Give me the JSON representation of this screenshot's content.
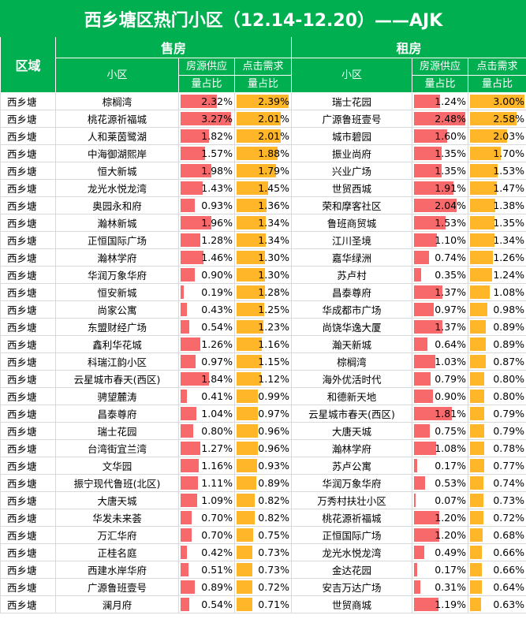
{
  "title": "西乡塘区热门小区（12.14-12.20）——AJK",
  "headers": {
    "area": "区域",
    "sale": "售房",
    "rent": "租房",
    "community": "小区",
    "supply_l1": "房源供应",
    "supply_l2": "量占比",
    "demand_l1": "点击需求",
    "demand_l2": "量占比"
  },
  "colors": {
    "header_bg": "#00b050",
    "supply_bar": "#f8696b",
    "demand_bar": "#ffb628"
  },
  "rows": [
    {
      "area": "西乡塘",
      "sale": {
        "name": "棕榈湾",
        "supply": "2.32%",
        "demand": "2.39%"
      },
      "rent": {
        "name": "瑞士花园",
        "supply": "1.24%",
        "demand": "3.00%"
      }
    },
    {
      "area": "西乡塘",
      "sale": {
        "name": "桃花源祈福城",
        "supply": "3.27%",
        "demand": "2.01%"
      },
      "rent": {
        "name": "广源鲁班壹号",
        "supply": "2.48%",
        "demand": "2.58%"
      }
    },
    {
      "area": "西乡塘",
      "sale": {
        "name": "人和莱茵鹭湖",
        "supply": "1.82%",
        "demand": "2.01%"
      },
      "rent": {
        "name": "城市碧园",
        "supply": "1.60%",
        "demand": "2.03%"
      }
    },
    {
      "area": "西乡塘",
      "sale": {
        "name": "中海御湖熙岸",
        "supply": "1.57%",
        "demand": "1.88%"
      },
      "rent": {
        "name": "振业尚府",
        "supply": "1.35%",
        "demand": "1.70%"
      }
    },
    {
      "area": "西乡塘",
      "sale": {
        "name": "恒大新城",
        "supply": "1.98%",
        "demand": "1.79%"
      },
      "rent": {
        "name": "兴业广场",
        "supply": "1.35%",
        "demand": "1.53%"
      }
    },
    {
      "area": "西乡塘",
      "sale": {
        "name": "龙光水悦龙湾",
        "supply": "1.43%",
        "demand": "1.45%"
      },
      "rent": {
        "name": "世贸西城",
        "supply": "1.91%",
        "demand": "1.47%"
      }
    },
    {
      "area": "西乡塘",
      "sale": {
        "name": "奥园永和府",
        "supply": "0.93%",
        "demand": "1.36%"
      },
      "rent": {
        "name": "荣和摩客社区",
        "supply": "2.04%",
        "demand": "1.38%"
      }
    },
    {
      "area": "西乡塘",
      "sale": {
        "name": "瀚林新城",
        "supply": "1.96%",
        "demand": "1.34%"
      },
      "rent": {
        "name": "鲁班商贸城",
        "supply": "1.53%",
        "demand": "1.35%"
      }
    },
    {
      "area": "西乡塘",
      "sale": {
        "name": "正恒国际广场",
        "supply": "1.28%",
        "demand": "1.34%"
      },
      "rent": {
        "name": "江川圣境",
        "supply": "1.10%",
        "demand": "1.34%"
      }
    },
    {
      "area": "西乡塘",
      "sale": {
        "name": "瀚林学府",
        "supply": "1.46%",
        "demand": "1.30%"
      },
      "rent": {
        "name": "嘉华绿洲",
        "supply": "0.74%",
        "demand": "1.26%"
      }
    },
    {
      "area": "西乡塘",
      "sale": {
        "name": "华润万象华府",
        "supply": "0.90%",
        "demand": "1.30%"
      },
      "rent": {
        "name": "苏卢村",
        "supply": "0.35%",
        "demand": "1.24%"
      }
    },
    {
      "area": "西乡塘",
      "sale": {
        "name": "恒安新城",
        "supply": "0.19%",
        "demand": "1.28%"
      },
      "rent": {
        "name": "昌泰尊府",
        "supply": "1.37%",
        "demand": "1.08%"
      }
    },
    {
      "area": "西乡塘",
      "sale": {
        "name": "尚家公寓",
        "supply": "0.43%",
        "demand": "1.25%"
      },
      "rent": {
        "name": "华成都市广场",
        "supply": "0.97%",
        "demand": "0.98%"
      }
    },
    {
      "area": "西乡塘",
      "sale": {
        "name": "东盟财经广场",
        "supply": "0.54%",
        "demand": "1.23%"
      },
      "rent": {
        "name": "尚饶华逸大厦",
        "supply": "1.37%",
        "demand": "0.89%"
      }
    },
    {
      "area": "西乡塘",
      "sale": {
        "name": "鑫利华花城",
        "supply": "1.26%",
        "demand": "1.16%"
      },
      "rent": {
        "name": "瀚天新城",
        "supply": "0.64%",
        "demand": "0.89%"
      }
    },
    {
      "area": "西乡塘",
      "sale": {
        "name": "科瑞江韵小区",
        "supply": "0.97%",
        "demand": "1.15%"
      },
      "rent": {
        "name": "棕榈湾",
        "supply": "1.03%",
        "demand": "0.87%"
      }
    },
    {
      "area": "西乡塘",
      "sale": {
        "name": "云星城市春天(西区)",
        "supply": "1.84%",
        "demand": "1.12%"
      },
      "rent": {
        "name": "海外优活时代",
        "supply": "0.79%",
        "demand": "0.80%"
      }
    },
    {
      "area": "西乡塘",
      "sale": {
        "name": "骋望麓涛",
        "supply": "0.41%",
        "demand": "0.99%"
      },
      "rent": {
        "name": "和德新天地",
        "supply": "0.90%",
        "demand": "0.80%"
      }
    },
    {
      "area": "西乡塘",
      "sale": {
        "name": "昌泰尊府",
        "supply": "1.04%",
        "demand": "0.97%"
      },
      "rent": {
        "name": "云星城市春天(西区)",
        "supply": "1.81%",
        "demand": "0.79%"
      }
    },
    {
      "area": "西乡塘",
      "sale": {
        "name": "瑞士花园",
        "supply": "0.80%",
        "demand": "0.96%"
      },
      "rent": {
        "name": "大唐天城",
        "supply": "0.75%",
        "demand": "0.79%"
      }
    },
    {
      "area": "西乡塘",
      "sale": {
        "name": "台湾街宜兰湾",
        "supply": "1.27%",
        "demand": "0.96%"
      },
      "rent": {
        "name": "瀚林学府",
        "supply": "1.08%",
        "demand": "0.78%"
      }
    },
    {
      "area": "西乡塘",
      "sale": {
        "name": "文华园",
        "supply": "1.16%",
        "demand": "0.93%"
      },
      "rent": {
        "name": "苏卢公寓",
        "supply": "0.17%",
        "demand": "0.77%"
      }
    },
    {
      "area": "西乡塘",
      "sale": {
        "name": "振宁现代鲁班(北区)",
        "supply": "1.11%",
        "demand": "0.89%"
      },
      "rent": {
        "name": "华润万象华府",
        "supply": "0.53%",
        "demand": "0.74%"
      }
    },
    {
      "area": "西乡塘",
      "sale": {
        "name": "大唐天城",
        "supply": "1.09%",
        "demand": "0.82%"
      },
      "rent": {
        "name": "万秀村扶壮小区",
        "supply": "0.07%",
        "demand": "0.73%"
      }
    },
    {
      "area": "西乡塘",
      "sale": {
        "name": "华发未来荟",
        "supply": "0.70%",
        "demand": "0.82%"
      },
      "rent": {
        "name": "桃花源祈福城",
        "supply": "1.20%",
        "demand": "0.72%"
      }
    },
    {
      "area": "西乡塘",
      "sale": {
        "name": "万汇华府",
        "supply": "0.70%",
        "demand": "0.75%"
      },
      "rent": {
        "name": "正恒国际广场",
        "supply": "1.20%",
        "demand": "0.68%"
      }
    },
    {
      "area": "西乡塘",
      "sale": {
        "name": "正桂名庭",
        "supply": "0.42%",
        "demand": "0.73%"
      },
      "rent": {
        "name": "龙光水悦龙湾",
        "supply": "0.49%",
        "demand": "0.66%"
      }
    },
    {
      "area": "西乡塘",
      "sale": {
        "name": "西建水岸华府",
        "supply": "0.51%",
        "demand": "0.73%"
      },
      "rent": {
        "name": "金达花园",
        "supply": "0.17%",
        "demand": "0.66%"
      }
    },
    {
      "area": "西乡塘",
      "sale": {
        "name": "广源鲁班壹号",
        "supply": "0.89%",
        "demand": "0.72%"
      },
      "rent": {
        "name": "安吉万达广场",
        "supply": "0.31%",
        "demand": "0.64%"
      }
    },
    {
      "area": "西乡塘",
      "sale": {
        "name": "澜月府",
        "supply": "0.54%",
        "demand": "0.71%"
      },
      "rent": {
        "name": "世贸商城",
        "supply": "1.19%",
        "demand": "0.63%"
      }
    }
  ]
}
